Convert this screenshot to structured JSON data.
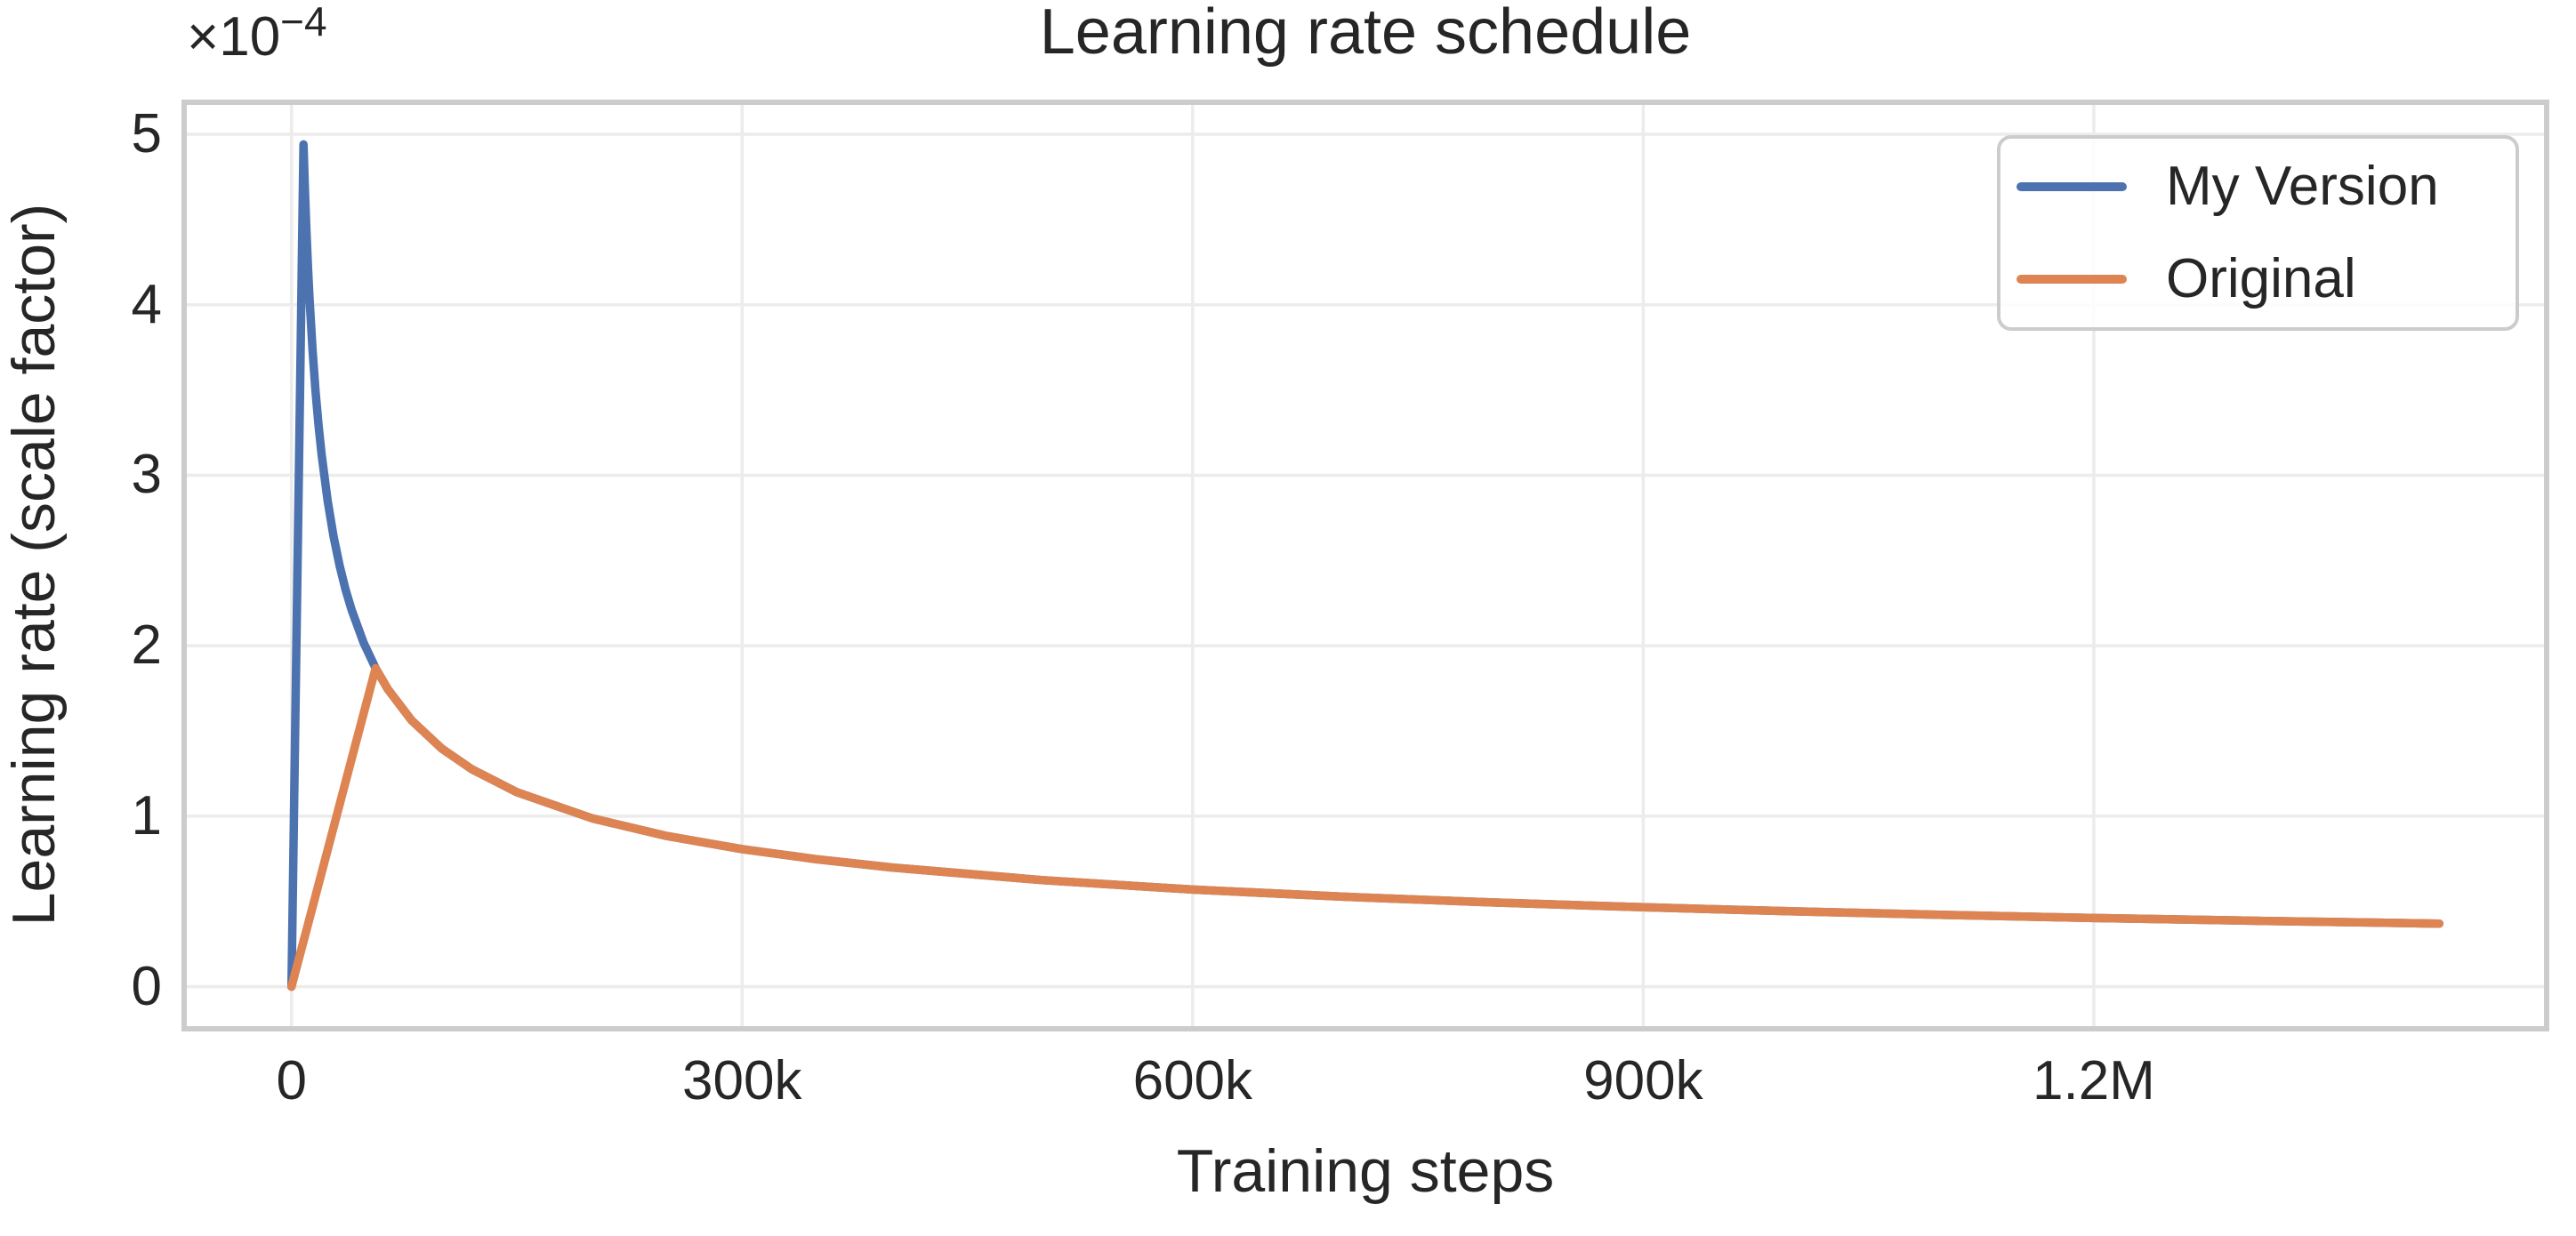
{
  "title": "Learning rate schedule",
  "axis_labels": {
    "x": "Training steps",
    "y": "Learning rate (scale factor)"
  },
  "y_offset": {
    "base": "×10",
    "exp": "−4"
  },
  "legend": {
    "position": "upper right",
    "items": [
      {
        "label": "My Version",
        "color": "#4C72B0"
      },
      {
        "label": "Original",
        "color": "#DD8452"
      }
    ]
  },
  "colors": {
    "text": "#262626",
    "grid": "#ececec",
    "spine": "#cccccc",
    "background": "#ffffff",
    "series_blue": "#4C72B0",
    "series_orange": "#DD8452"
  },
  "chart_data": {
    "type": "line",
    "title": "Learning rate schedule",
    "xlabel": "Training steps",
    "ylabel": "Learning rate (scale factor)",
    "y_offset_label": "×10⁻⁴",
    "y_unit_factor": 0.0001,
    "grid": true,
    "legend_position": "upper right",
    "xlim": [
      -71500,
      1501500
    ],
    "ylim_e4": [
      -0.247,
      5.188
    ],
    "x_ticks": [
      {
        "value": 0,
        "label": "0"
      },
      {
        "value": 300000,
        "label": "300k"
      },
      {
        "value": 600000,
        "label": "600k"
      },
      {
        "value": 900000,
        "label": "900k"
      },
      {
        "value": 1200000,
        "label": "1.2M"
      }
    ],
    "y_ticks_e4": [
      {
        "value": 0,
        "label": "0"
      },
      {
        "value": 1,
        "label": "1"
      },
      {
        "value": 2,
        "label": "2"
      },
      {
        "value": 3,
        "label": "3"
      },
      {
        "value": 4,
        "label": "4"
      },
      {
        "value": 5,
        "label": "5"
      }
    ],
    "series": [
      {
        "name": "My Version",
        "color": "#4C72B0",
        "peak": {
          "step": 8000,
          "lr_e4": 4.94
        },
        "points_step_lr_e4": [
          [
            0,
            0
          ],
          [
            1000,
            0.618
          ],
          [
            2000,
            1.235
          ],
          [
            3000,
            1.853
          ],
          [
            4000,
            2.47
          ],
          [
            5000,
            3.088
          ],
          [
            6000,
            3.706
          ],
          [
            7000,
            4.323
          ],
          [
            8000,
            4.941
          ],
          [
            9000,
            4.658
          ],
          [
            10000,
            4.419
          ],
          [
            11000,
            4.213
          ],
          [
            12000,
            4.034
          ],
          [
            14000,
            3.735
          ],
          [
            16000,
            3.494
          ],
          [
            18000,
            3.294
          ],
          [
            20000,
            3.125
          ],
          [
            24000,
            2.852
          ],
          [
            28000,
            2.641
          ],
          [
            32000,
            2.47
          ],
          [
            36000,
            2.329
          ],
          [
            40000,
            2.21
          ],
          [
            48000,
            2.017
          ],
          [
            56000,
            1.868
          ],
          [
            64000,
            1.747
          ],
          [
            80000,
            1.562
          ],
          [
            100000,
            1.397
          ],
          [
            120000,
            1.276
          ],
          [
            150000,
            1.141
          ],
          [
            200000,
            0.988
          ],
          [
            250000,
            0.884
          ],
          [
            300000,
            0.807
          ],
          [
            350000,
            0.747
          ],
          [
            400000,
            0.699
          ],
          [
            500000,
            0.625
          ],
          [
            600000,
            0.57
          ],
          [
            700000,
            0.528
          ],
          [
            800000,
            0.494
          ],
          [
            900000,
            0.466
          ],
          [
            1000000,
            0.442
          ],
          [
            1100000,
            0.421
          ],
          [
            1200000,
            0.403
          ],
          [
            1300000,
            0.388
          ],
          [
            1430000,
            0.37
          ]
        ]
      },
      {
        "name": "Original",
        "color": "#DD8452",
        "peak": {
          "step": 56000,
          "lr_e4": 1.87
        },
        "points_step_lr_e4": [
          [
            0,
            0
          ],
          [
            14000,
            0.467
          ],
          [
            28000,
            0.934
          ],
          [
            42000,
            1.401
          ],
          [
            56000,
            1.868
          ],
          [
            64000,
            1.747
          ],
          [
            80000,
            1.562
          ],
          [
            100000,
            1.397
          ],
          [
            120000,
            1.276
          ],
          [
            150000,
            1.141
          ],
          [
            200000,
            0.988
          ],
          [
            250000,
            0.884
          ],
          [
            300000,
            0.807
          ],
          [
            350000,
            0.747
          ],
          [
            400000,
            0.699
          ],
          [
            500000,
            0.625
          ],
          [
            600000,
            0.57
          ],
          [
            700000,
            0.528
          ],
          [
            800000,
            0.494
          ],
          [
            900000,
            0.466
          ],
          [
            1000000,
            0.442
          ],
          [
            1100000,
            0.421
          ],
          [
            1200000,
            0.403
          ],
          [
            1300000,
            0.388
          ],
          [
            1430000,
            0.37
          ]
        ]
      }
    ]
  }
}
